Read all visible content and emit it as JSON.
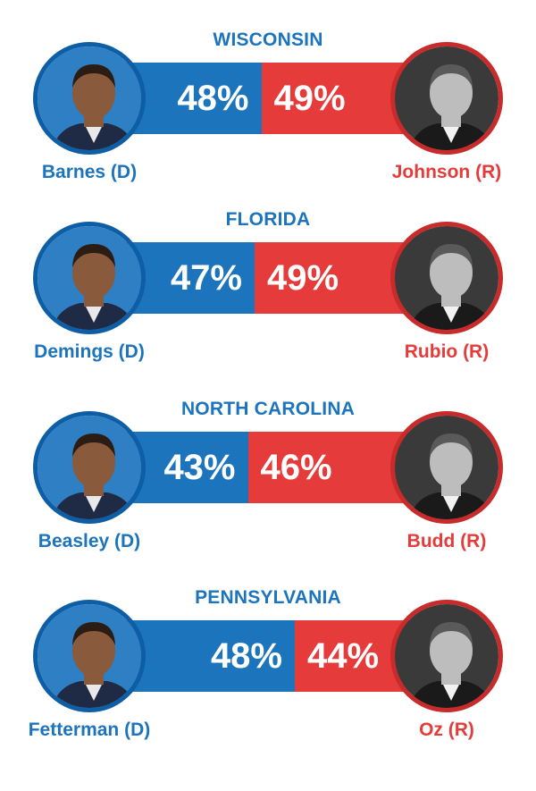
{
  "colors": {
    "dem": "#1c74bd",
    "rep": "#e63b3b",
    "dem_ring": "#0e5ea6",
    "rep_ring": "#c92a2a"
  },
  "chart_data": {
    "type": "bar",
    "subtype": "stacked-horizontal-head-to-head",
    "races": [
      {
        "state": "WISCONSIN",
        "dem": {
          "name": "Barnes (D)",
          "value": 48,
          "label": "48%"
        },
        "rep": {
          "name": "Johnson (R)",
          "value": 49,
          "label": "49%"
        }
      },
      {
        "state": "FLORIDA",
        "dem": {
          "name": "Demings (D)",
          "value": 47,
          "label": "47%"
        },
        "rep": {
          "name": "Rubio (R)",
          "value": 49,
          "label": "49%"
        }
      },
      {
        "state": "NORTH CAROLINA",
        "dem": {
          "name": "Beasley (D)",
          "value": 43,
          "label": "43%"
        },
        "rep": {
          "name": "Budd (R)",
          "value": 46,
          "label": "46%"
        }
      },
      {
        "state": "PENNSYLVANIA",
        "dem": {
          "name": "Fetterman (D)",
          "value": 48,
          "label": "48%"
        },
        "rep": {
          "name": "Oz (R)",
          "value": 44,
          "label": "44%"
        }
      }
    ]
  }
}
